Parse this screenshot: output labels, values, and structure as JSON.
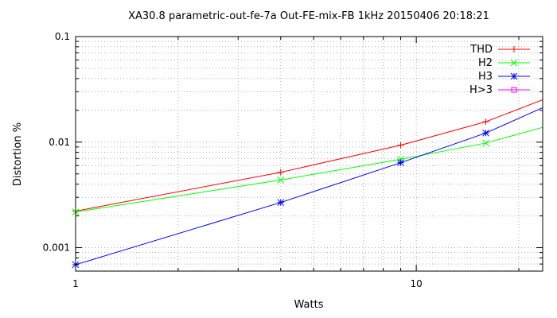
{
  "chart_data": {
    "type": "line",
    "title": "XA30.8 parametric-out-fe-7a Out-FE-mix-FB 1kHz 20150406 20:18:21",
    "xlabel": "Watts",
    "ylabel": "Distortion %",
    "xscale": "log",
    "yscale": "log",
    "xlim": [
      1,
      23.5
    ],
    "ylim": [
      0.0006,
      0.1
    ],
    "grid": true,
    "legend_position": "top-right",
    "x_tick_labels": [
      {
        "value": 1,
        "label": "1"
      },
      {
        "value": 10,
        "label": "10"
      }
    ],
    "y_tick_labels": [
      {
        "value": 0.001,
        "label": "0.001"
      },
      {
        "value": 0.01,
        "label": "0.01"
      },
      {
        "value": 0.1,
        "label": "0.1"
      }
    ],
    "series": [
      {
        "name": "THD",
        "color": "#ff0000",
        "marker": "plus",
        "line": [
          [
            1,
            0.00222
          ],
          [
            4,
            0.00518
          ],
          [
            9,
            0.00935
          ],
          [
            16,
            0.0156
          ],
          [
            23.5,
            0.0252
          ]
        ],
        "markers": [
          [
            1,
            0.00222
          ],
          [
            4,
            0.00518
          ],
          [
            9,
            0.00935
          ],
          [
            16,
            0.0156
          ]
        ]
      },
      {
        "name": "H2",
        "color": "#00ff00",
        "marker": "cross",
        "line": [
          [
            1,
            0.00218
          ],
          [
            4,
            0.00438
          ],
          [
            9,
            0.00688
          ],
          [
            16,
            0.0098
          ],
          [
            23.5,
            0.0138
          ]
        ],
        "markers": [
          [
            1,
            0.00218
          ],
          [
            4,
            0.00438
          ],
          [
            9,
            0.00688
          ],
          [
            16,
            0.0098
          ]
        ]
      },
      {
        "name": "H3",
        "color": "#0000ff",
        "marker": "star",
        "line": [
          [
            1,
            0.00069
          ],
          [
            4,
            0.00268
          ],
          [
            9,
            0.00638
          ],
          [
            16,
            0.0122
          ],
          [
            23.5,
            0.0212
          ]
        ],
        "markers": [
          [
            1,
            0.00069
          ],
          [
            4,
            0.00268
          ],
          [
            9,
            0.00638
          ],
          [
            16,
            0.0122
          ]
        ]
      },
      {
        "name": "H>3",
        "color": "#ff00ff",
        "marker": "square",
        "line": [],
        "markers": []
      }
    ]
  }
}
